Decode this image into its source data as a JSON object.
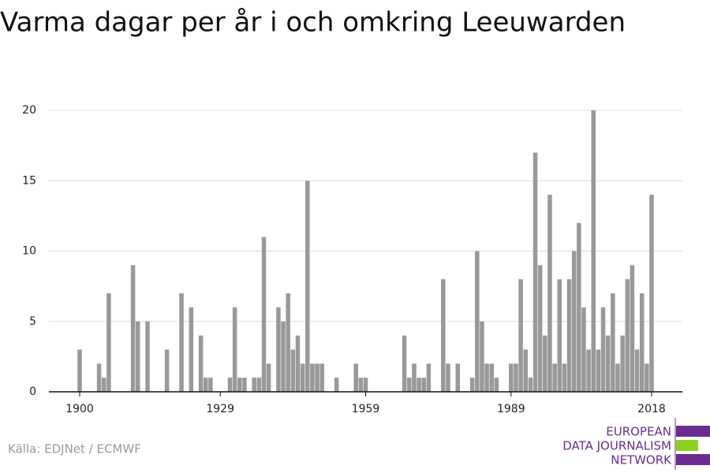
{
  "chart_data": {
    "type": "bar",
    "title": "Varma dagar per år i och omkring Leeuwarden",
    "x": [
      1900,
      1904,
      1905,
      1906,
      1911,
      1912,
      1914,
      1918,
      1921,
      1923,
      1925,
      1926,
      1927,
      1931,
      1932,
      1933,
      1934,
      1936,
      1937,
      1938,
      1939,
      1941,
      1942,
      1943,
      1944,
      1945,
      1946,
      1947,
      1948,
      1949,
      1950,
      1953,
      1957,
      1958,
      1959,
      1967,
      1968,
      1969,
      1970,
      1971,
      1972,
      1975,
      1976,
      1978,
      1981,
      1982,
      1983,
      1984,
      1985,
      1986,
      1989,
      1990,
      1991,
      1992,
      1993,
      1994,
      1995,
      1996,
      1997,
      1998,
      1999,
      2000,
      2001,
      2002,
      2003,
      2004,
      2005,
      2006,
      2007,
      2008,
      2009,
      2010,
      2011,
      2012,
      2013,
      2014,
      2015,
      2016,
      2017,
      2018
    ],
    "values": [
      3,
      2,
      1,
      7,
      9,
      5,
      5,
      3,
      7,
      6,
      4,
      1,
      1,
      1,
      6,
      1,
      1,
      1,
      1,
      11,
      2,
      6,
      5,
      7,
      3,
      4,
      2,
      15,
      2,
      2,
      2,
      1,
      2,
      1,
      1,
      4,
      1,
      2,
      1,
      1,
      2,
      8,
      2,
      2,
      1,
      10,
      5,
      2,
      2,
      1,
      2,
      2,
      8,
      3,
      1,
      17,
      9,
      4,
      14,
      2,
      8,
      2,
      8,
      10,
      12,
      6,
      3,
      20,
      3,
      6,
      4,
      7,
      2,
      4,
      8,
      9,
      3,
      7,
      2,
      14
    ],
    "color": "#999999",
    "xlim": [
      1893.65,
      2024.35
    ],
    "xticks": [
      1900,
      1929,
      1959,
      1989,
      2018
    ],
    "ylim": [
      0,
      20
    ],
    "yticks": [
      0,
      5,
      10,
      15,
      20
    ],
    "grid": true,
    "source": "Källa: EDJNet / ECMWF",
    "logo": [
      "EUROPEAN",
      "DATA JOURNALISM",
      "NETWORK"
    ]
  }
}
